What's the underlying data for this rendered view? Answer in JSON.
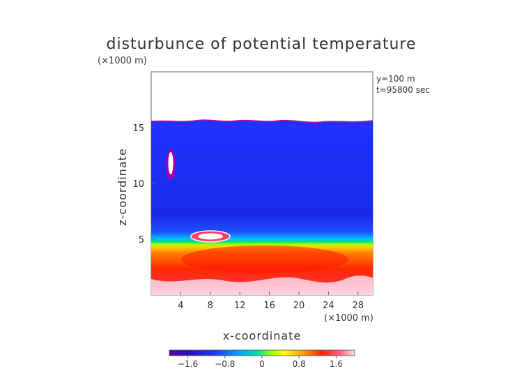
{
  "chart_data": {
    "type": "heatmap",
    "title": "disturbunce of potential temperature",
    "unit_label_y": "(×1000 m)",
    "unit_label_x": "(×1000 m)",
    "annotations": [
      "y=100 m",
      "t=95800 sec"
    ],
    "xlabel": "x-coordinate",
    "ylabel": "z-coordinate",
    "xlim": [
      0,
      30
    ],
    "ylim": [
      0,
      20
    ],
    "x_ticks": [
      4,
      8,
      12,
      16,
      20,
      24,
      28
    ],
    "y_ticks": [
      5,
      10,
      15
    ],
    "colorbar": {
      "range": [
        -2.0,
        2.0
      ],
      "ticks": [
        -1.6,
        -0.8,
        0,
        0.8,
        1.6
      ],
      "tick_labels": [
        "−1.6",
        "−0.8",
        "0",
        "0.8",
        "1.6"
      ],
      "colors": [
        "#5a00a0",
        "#2020ff",
        "#00a0ff",
        "#00e0a0",
        "#60ff00",
        "#ffff00",
        "#ffa000",
        "#ff2000",
        "#ff6080",
        "#ffe0f0"
      ]
    },
    "field_description_levels": [
      {
        "z_range": [
          16,
          20
        ],
        "value": "undefined (above top)"
      },
      {
        "z_range": [
          6.5,
          16
        ],
        "value": -1.4
      },
      {
        "z_range": [
          5.5,
          6.5
        ],
        "value": 0.0
      },
      {
        "z_range": [
          0,
          5.5
        ],
        "value": 1.4
      }
    ]
  }
}
